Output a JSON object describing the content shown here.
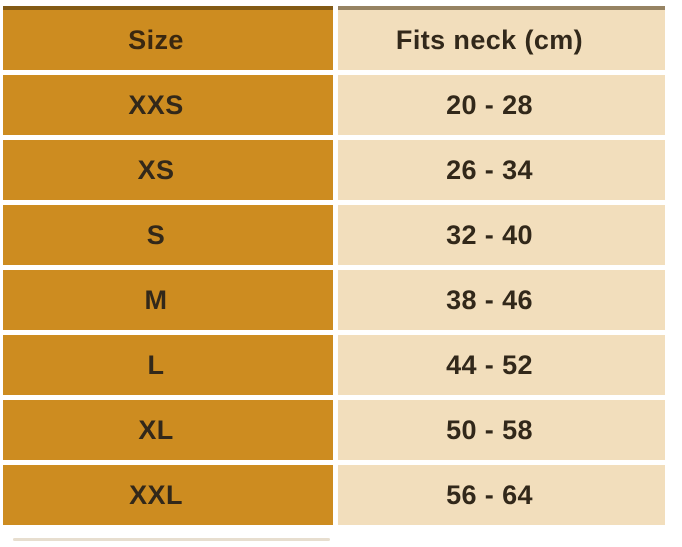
{
  "colors": {
    "gold": "#cd8c20",
    "peach": "#f2debc",
    "text_dark": "#32281a",
    "separator": "#ffffff"
  },
  "table": {
    "columns": [
      {
        "key": "size",
        "label": "Size"
      },
      {
        "key": "fits_neck",
        "label": "Fits neck (cm)"
      }
    ],
    "rows": [
      {
        "size": "XXS",
        "fits_neck": "20 - 28"
      },
      {
        "size": "XS",
        "fits_neck": "26 - 34"
      },
      {
        "size": "S",
        "fits_neck": "32 - 40"
      },
      {
        "size": "M",
        "fits_neck": "38 - 46"
      },
      {
        "size": "L",
        "fits_neck": "44 - 52"
      },
      {
        "size": "XL",
        "fits_neck": "50 - 58"
      },
      {
        "size": "XXL",
        "fits_neck": "56 - 64"
      }
    ]
  },
  "chart_data": {
    "type": "table",
    "title": "",
    "columns": [
      "Size",
      "Fits neck (cm)"
    ],
    "rows": [
      [
        "XXS",
        "20 - 28"
      ],
      [
        "XS",
        "26 - 34"
      ],
      [
        "S",
        "32 - 40"
      ],
      [
        "M",
        "38 - 46"
      ],
      [
        "L",
        "44 - 52"
      ],
      [
        "XL",
        "50 - 58"
      ],
      [
        "XXL",
        "56 - 64"
      ]
    ]
  }
}
